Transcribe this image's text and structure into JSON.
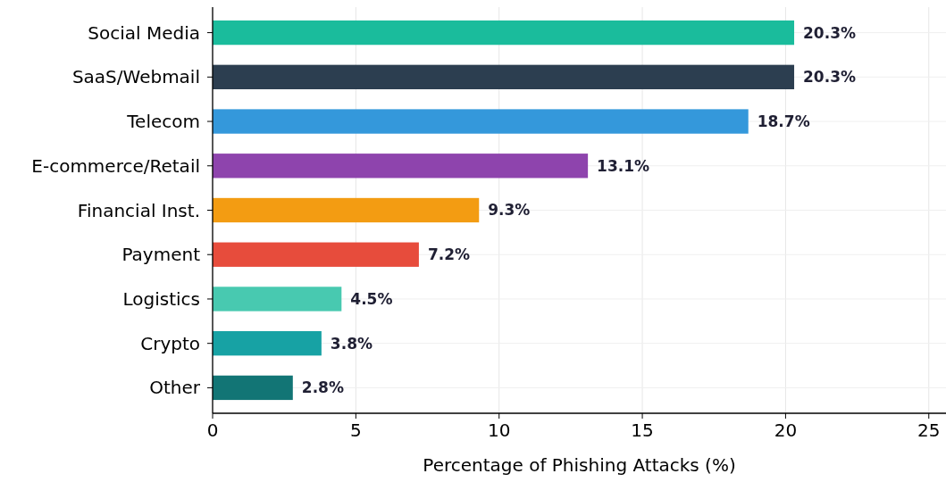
{
  "chart_data": {
    "type": "bar",
    "orientation": "horizontal",
    "xlabel": "Percentage of Phishing Attacks (%)",
    "categories": [
      "Social Media",
      "SaaS/Webmail",
      "Telecom",
      "E-commerce/Retail",
      "Financial Inst.",
      "Payment",
      "Logistics",
      "Crypto",
      "Other"
    ],
    "values": [
      20.3,
      20.3,
      18.7,
      13.1,
      9.3,
      7.2,
      4.5,
      3.8,
      2.8
    ],
    "value_labels": [
      "20.3%",
      "20.3%",
      "18.7%",
      "13.1%",
      "9.3%",
      "7.2%",
      "4.5%",
      "3.8%",
      "2.8%"
    ],
    "colors": [
      "#1abc9c",
      "#2c3e50",
      "#3498db",
      "#8e44ad",
      "#f39c12",
      "#e74c3c",
      "#48c9b0",
      "#17a2a4",
      "#127575"
    ],
    "xlim": [
      0,
      25.6
    ],
    "xticks": [
      0,
      5,
      10,
      15,
      20,
      25
    ],
    "grid": true
  }
}
